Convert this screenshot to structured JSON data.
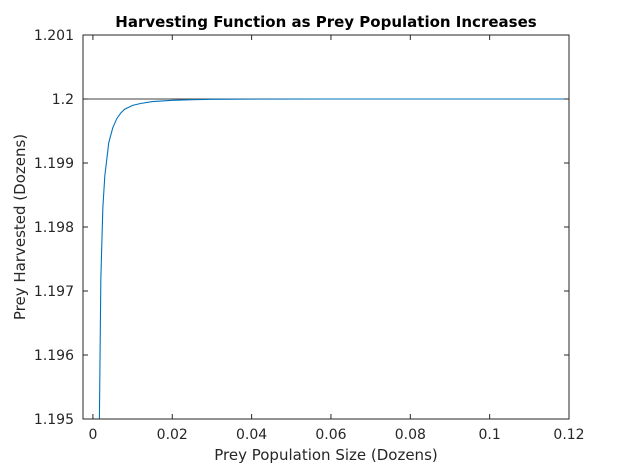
{
  "chart_data": {
    "type": "line",
    "title": "Harvesting Function as Prey Population Increases",
    "xlabel": "Prey Population Size (Dozens)",
    "ylabel": "Prey Harvested (Dozens)",
    "xlim": [
      -0.0025,
      0.12
    ],
    "ylim": [
      1.195,
      1.201
    ],
    "xticks": [
      0,
      0.02,
      0.04,
      0.06,
      0.08,
      0.1,
      0.12
    ],
    "xtick_labels": [
      "0",
      "0.02",
      "0.04",
      "0.06",
      "0.08",
      "0.1",
      "0.12"
    ],
    "yticks": [
      1.195,
      1.196,
      1.197,
      1.198,
      1.199,
      1.2,
      1.201
    ],
    "ytick_labels": [
      "1.195",
      "1.196",
      "1.197",
      "1.198",
      "1.199",
      "1.2",
      "1.201"
    ],
    "grid": false,
    "reference_lines": [
      {
        "y": 1.2,
        "color": "#000000"
      }
    ],
    "series": [
      {
        "color": "#0072bd",
        "points": [
          [
            0.0015,
            1.1942
          ],
          [
            0.002,
            1.1972
          ],
          [
            0.0025,
            1.1983
          ],
          [
            0.003,
            1.1988
          ],
          [
            0.004,
            1.19932
          ],
          [
            0.005,
            1.19955
          ],
          [
            0.006,
            1.19969
          ],
          [
            0.007,
            1.19978
          ],
          [
            0.008,
            1.19984
          ],
          [
            0.01,
            1.1999
          ],
          [
            0.012,
            1.19993
          ],
          [
            0.015,
            1.19996
          ],
          [
            0.02,
            1.19998
          ],
          [
            0.025,
            1.19999
          ],
          [
            0.03,
            1.199995
          ],
          [
            0.04,
            1.199998
          ],
          [
            0.06,
            1.2
          ],
          [
            0.08,
            1.2
          ],
          [
            0.1,
            1.2
          ],
          [
            0.12,
            1.2
          ]
        ]
      }
    ]
  }
}
